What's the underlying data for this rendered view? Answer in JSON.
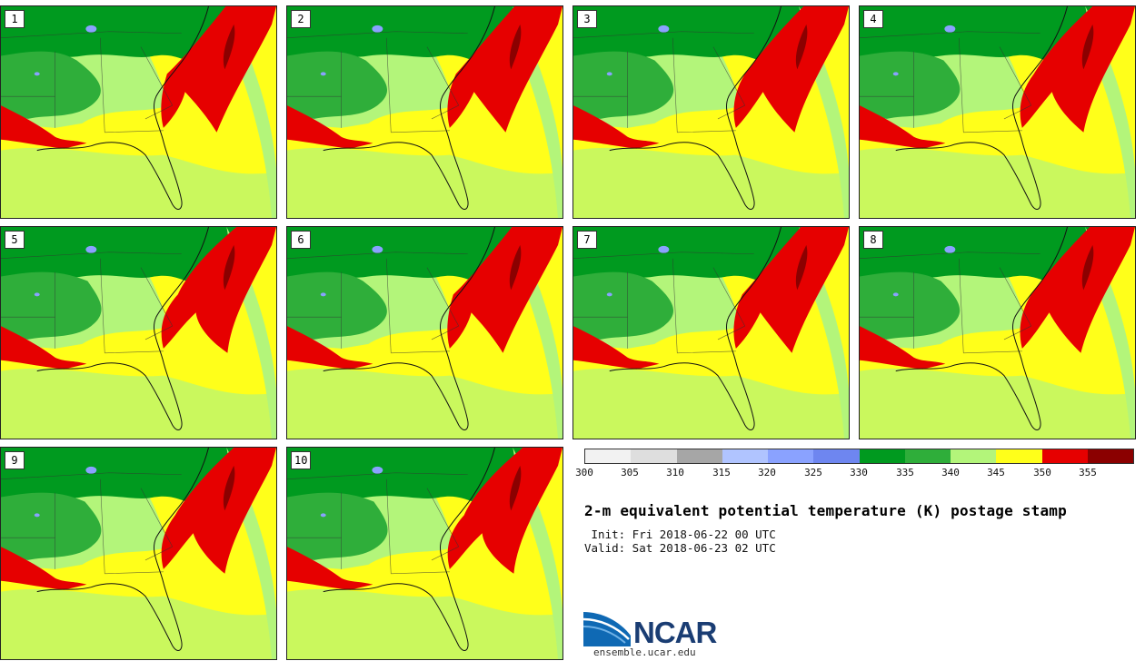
{
  "title": "2-m equivalent potential temperature (K) postage stamp",
  "init": " Init: Fri 2018-06-22 00 UTC",
  "valid": "Valid: Sat 2018-06-23 02 UTC",
  "colorbar": {
    "colors": [
      "#f2f2f2",
      "#dedede",
      "#a6a6a6",
      "#b0c4ff",
      "#8aa2ff",
      "#6e86f0",
      "#009a1f",
      "#2fae3a",
      "#b3f57a",
      "#ffff1a",
      "#e60000",
      "#8b0000"
    ],
    "ticks": [
      "300",
      "305",
      "310",
      "315",
      "320",
      "325",
      "330",
      "335",
      "340",
      "345",
      "350",
      "355"
    ]
  },
  "members": [
    "1",
    "2",
    "3",
    "4",
    "5",
    "6",
    "7",
    "8",
    "9",
    "10"
  ],
  "logo": {
    "word": "NCAR",
    "url": "ensemble.ucar.edu"
  },
  "icons": {
    "logo": "ncar-logo-icon"
  }
}
